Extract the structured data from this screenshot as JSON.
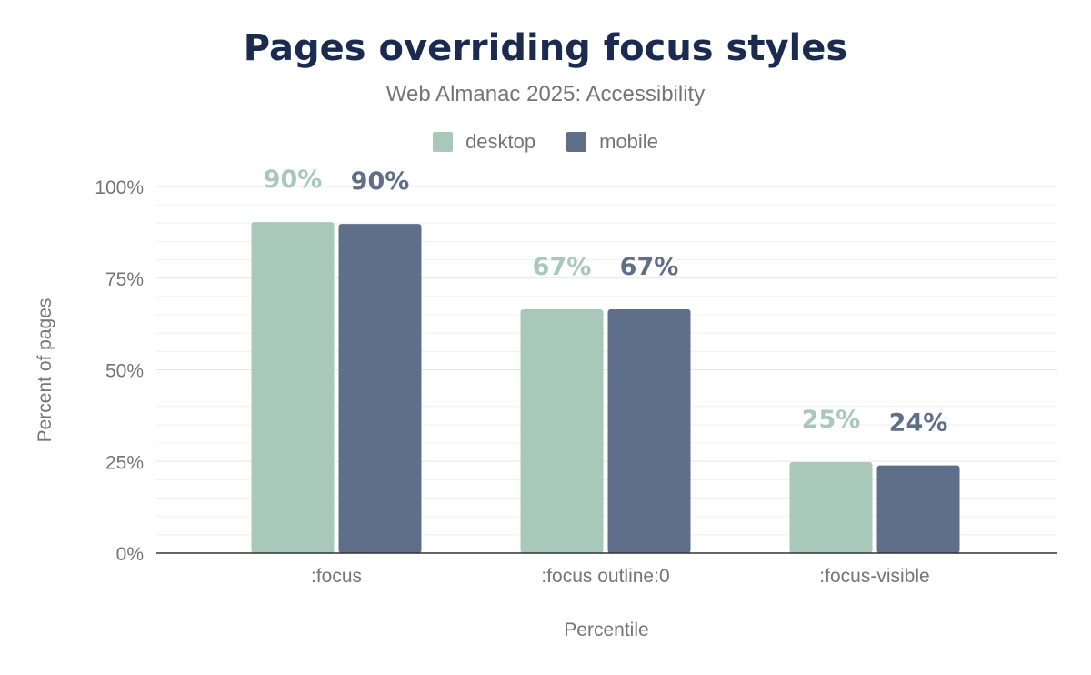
{
  "chart_data": {
    "type": "bar",
    "title": "Pages overriding focus styles",
    "subtitle": "Web Almanac 2025: Accessibility",
    "xlabel": "Percentile",
    "ylabel": "Percent of pages",
    "categories": [
      ":focus",
      ":focus outline:0",
      ":focus-visible"
    ],
    "series": [
      {
        "name": "desktop",
        "color": "#a8c9b9",
        "values": [
          90.3,
          66.5,
          24.8
        ],
        "labels": [
          "90%",
          "67%",
          "25%"
        ]
      },
      {
        "name": "mobile",
        "color": "#5f6f8a",
        "values": [
          89.8,
          66.5,
          23.9
        ],
        "labels": [
          "90%",
          "67%",
          "24%"
        ]
      }
    ],
    "ylim": [
      0,
      100
    ],
    "yticks": [
      0,
      25,
      50,
      75,
      100
    ],
    "ytick_labels": [
      "0%",
      "25%",
      "50%",
      "75%",
      "100%"
    ],
    "grid": true,
    "legend": "top-center"
  }
}
